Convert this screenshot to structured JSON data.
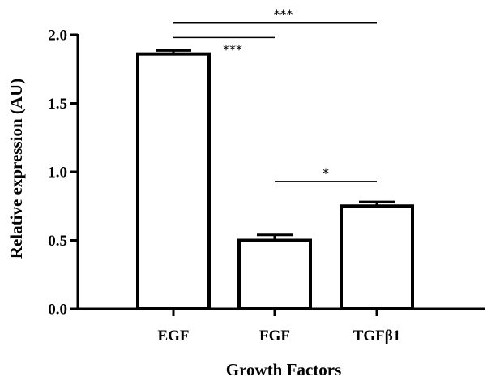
{
  "chart_data": {
    "type": "bar",
    "title": "",
    "xlabel": "Growth Factors",
    "ylabel": "Relative expression (AU)",
    "ylim": [
      0,
      2.0
    ],
    "yticks": [
      "0.0",
      "0.5",
      "1.0",
      "1.5",
      "2.0"
    ],
    "categories": [
      "EGF",
      "FGF",
      "TGFβ1"
    ],
    "values": [
      1.86,
      0.5,
      0.75
    ],
    "errors": [
      0.025,
      0.04,
      0.03
    ],
    "significance": [
      {
        "from": 0,
        "to": 1,
        "label": "***",
        "level": 1.98
      },
      {
        "from": 0,
        "to": 2,
        "label": "***",
        "level": 2.09
      },
      {
        "from": 1,
        "to": 2,
        "label": "*",
        "level": 0.93
      }
    ],
    "colors": {
      "bar_fill": "#ffffff",
      "bar_stroke": "#000000"
    }
  }
}
